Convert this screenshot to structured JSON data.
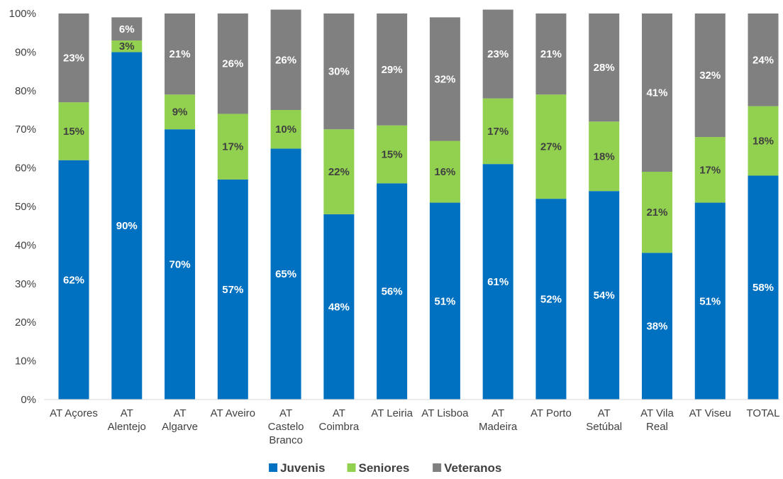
{
  "chart_data": {
    "type": "bar",
    "stacked": true,
    "categories": [
      [
        "AT Açores"
      ],
      [
        "AT",
        "Alentejo"
      ],
      [
        "AT",
        "Algarve"
      ],
      [
        "AT Aveiro"
      ],
      [
        "AT",
        "Castelo",
        "Branco"
      ],
      [
        "AT",
        "Coimbra"
      ],
      [
        "AT Leiria"
      ],
      [
        "AT Lisboa"
      ],
      [
        "AT",
        "Madeira"
      ],
      [
        "AT Porto"
      ],
      [
        "AT",
        "Setúbal"
      ],
      [
        "AT Vila",
        "Real"
      ],
      [
        "AT Viseu"
      ],
      [
        "TOTAL"
      ]
    ],
    "series": [
      {
        "name": "Juvenis",
        "color": "#0070C0",
        "label_color": "#ffffff",
        "values": [
          62,
          90,
          70,
          57,
          65,
          48,
          56,
          51,
          61,
          52,
          54,
          38,
          51,
          58
        ],
        "labels": [
          "62%",
          "90%",
          "70%",
          "57%",
          "65%",
          "48%",
          "56%",
          "51%",
          "61%",
          "52%",
          "54%",
          "38%",
          "51%",
          "58%"
        ]
      },
      {
        "name": "Seniores",
        "color": "#92D050",
        "label_color": "#404040",
        "values": [
          15,
          3,
          9,
          17,
          10,
          22,
          15,
          16,
          17,
          27,
          18,
          21,
          17,
          18
        ],
        "labels": [
          "15%",
          "3%",
          "9%",
          "17%",
          "10%",
          "22%",
          "15%",
          "16%",
          "17%",
          "27%",
          "18%",
          "21%",
          "17%",
          "18%"
        ]
      },
      {
        "name": "Veteranos",
        "color": "#808080",
        "label_color": "#ffffff",
        "values": [
          23,
          6,
          21,
          26,
          26,
          30,
          29,
          32,
          23,
          21,
          28,
          41,
          32,
          24
        ],
        "labels": [
          "23%",
          "6%",
          "21%",
          "26%",
          "26%",
          "30%",
          "29%",
          "32%",
          "23%",
          "21%",
          "28%",
          "41%",
          "32%",
          "24%"
        ]
      }
    ],
    "y_ticks": [
      "0%",
      "10%",
      "20%",
      "30%",
      "40%",
      "50%",
      "60%",
      "70%",
      "80%",
      "90%",
      "100%"
    ],
    "ylim": [
      0,
      100
    ],
    "grid": false,
    "legend_position": "bottom-center"
  }
}
